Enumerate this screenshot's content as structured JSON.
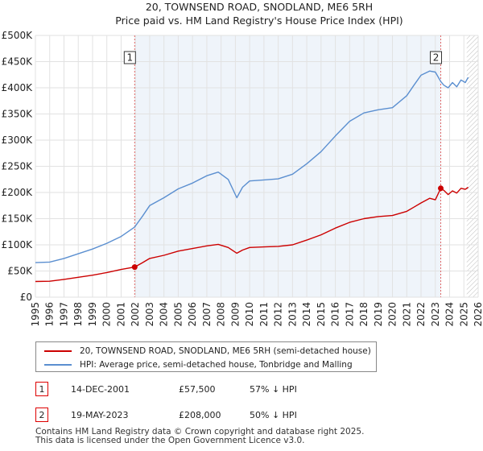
{
  "title_line1": "20, TOWNSEND ROAD, SNODLAND, ME6 5RH",
  "title_line2": "Price paid vs. HM Land Registry's House Price Index (HPI)",
  "colors": {
    "property": "#cc0000",
    "hpi": "#5b8fd0",
    "marker_line": "#e06666",
    "grid": "#e2e2e2",
    "shade": "#dce6f4"
  },
  "chart_data": {
    "type": "line",
    "title": "20, TOWNSEND ROAD, SNODLAND, ME6 5RH — Price paid vs. HM Land Registry's House Price Index (HPI)",
    "xlabel": "",
    "ylabel": "",
    "xlim": [
      1995,
      2026
    ],
    "ylim": [
      0,
      500000
    ],
    "y_ticks": [
      0,
      50000,
      100000,
      150000,
      200000,
      250000,
      300000,
      350000,
      400000,
      450000,
      500000
    ],
    "y_tick_labels": [
      "£0",
      "£50K",
      "£100K",
      "£150K",
      "£200K",
      "£250K",
      "£300K",
      "£350K",
      "£400K",
      "£450K",
      "£500K"
    ],
    "x_ticks": [
      1995,
      1996,
      1997,
      1998,
      1999,
      2000,
      2001,
      2002,
      2003,
      2004,
      2005,
      2006,
      2007,
      2008,
      2009,
      2010,
      2011,
      2012,
      2013,
      2014,
      2015,
      2016,
      2017,
      2018,
      2019,
      2020,
      2021,
      2022,
      2023,
      2024,
      2025,
      2026
    ],
    "x_tick_labels": [
      "1995",
      "1996",
      "1997",
      "1998",
      "1999",
      "2000",
      "2001",
      "2002",
      "2003",
      "2004",
      "2005",
      "2006",
      "2007",
      "2008",
      "2009",
      "2010",
      "2011",
      "2012",
      "2013",
      "2014",
      "2015",
      "2016",
      "2017",
      "2018",
      "2019",
      "2020",
      "2021",
      "2022",
      "2023",
      "2024",
      "2025",
      "2026"
    ],
    "grid": true,
    "projection_start": 2025.2,
    "series": [
      {
        "name": "20, TOWNSEND ROAD, SNODLAND, ME6 5RH (semi-detached house)",
        "color": "#cc0000",
        "x": [
          1995.0,
          1996.0,
          1997.0,
          1998.0,
          1999.0,
          2000.0,
          2001.0,
          2001.95,
          2002.5,
          2003.0,
          2004.0,
          2005.0,
          2006.0,
          2007.0,
          2007.8,
          2008.5,
          2009.1,
          2009.5,
          2010.0,
          2011.0,
          2012.0,
          2013.0,
          2014.0,
          2015.0,
          2016.0,
          2017.0,
          2018.0,
          2019.0,
          2020.0,
          2021.0,
          2021.5,
          2022.0,
          2022.6,
          2023.0,
          2023.38,
          2023.6,
          2023.9,
          2024.2,
          2024.5,
          2024.8,
          2025.1,
          2025.3
        ],
        "y": [
          30000,
          30500,
          34000,
          38000,
          42000,
          47000,
          53000,
          57500,
          66000,
          74000,
          80000,
          88000,
          93000,
          98000,
          101000,
          95000,
          84000,
          90000,
          95000,
          96000,
          97000,
          100000,
          109000,
          119000,
          132000,
          143000,
          150000,
          154000,
          156000,
          164000,
          172000,
          180000,
          189000,
          186000,
          208000,
          204000,
          196000,
          203000,
          199000,
          208000,
          206000,
          210000
        ]
      },
      {
        "name": "HPI: Average price, semi-detached house, Tonbridge and Malling",
        "color": "#5b8fd0",
        "x": [
          1995.0,
          1996.0,
          1997.0,
          1998.0,
          1999.0,
          2000.0,
          2001.0,
          2001.95,
          2002.5,
          2003.0,
          2004.0,
          2005.0,
          2006.0,
          2007.0,
          2007.8,
          2008.5,
          2009.1,
          2009.5,
          2010.0,
          2011.0,
          2012.0,
          2013.0,
          2014.0,
          2015.0,
          2016.0,
          2017.0,
          2018.0,
          2019.0,
          2020.0,
          2021.0,
          2021.5,
          2022.0,
          2022.6,
          2023.0,
          2023.38,
          2023.6,
          2023.9,
          2024.2,
          2024.5,
          2024.8,
          2025.1,
          2025.3
        ],
        "y": [
          66000,
          67000,
          74000,
          83000,
          92000,
          103000,
          116000,
          134000,
          155000,
          175000,
          190000,
          207000,
          218000,
          232000,
          239000,
          225000,
          190000,
          210000,
          222000,
          224000,
          226000,
          235000,
          255000,
          278000,
          308000,
          336000,
          352000,
          358000,
          362000,
          385000,
          405000,
          424000,
          432000,
          430000,
          412000,
          405000,
          400000,
          410000,
          402000,
          415000,
          410000,
          420000
        ]
      }
    ],
    "annotations": [
      {
        "label": "1",
        "x": 2001.95,
        "y": 57500
      },
      {
        "label": "2",
        "x": 2023.38,
        "y": 208000
      }
    ]
  },
  "legend": {
    "property_label": "20, TOWNSEND ROAD, SNODLAND, ME6 5RH (semi-detached house)",
    "hpi_label": "HPI: Average price, semi-detached house, Tonbridge and Malling"
  },
  "sales": [
    {
      "num": "1",
      "date": "14-DEC-2001",
      "price": "£57,500",
      "hpi": "57% ↓ HPI"
    },
    {
      "num": "2",
      "date": "19-MAY-2023",
      "price": "£208,000",
      "hpi": "50% ↓ HPI"
    }
  ],
  "footer": {
    "line1": "Contains HM Land Registry data © Crown copyright and database right 2025.",
    "line2": "This data is licensed under the Open Government Licence v3.0."
  }
}
